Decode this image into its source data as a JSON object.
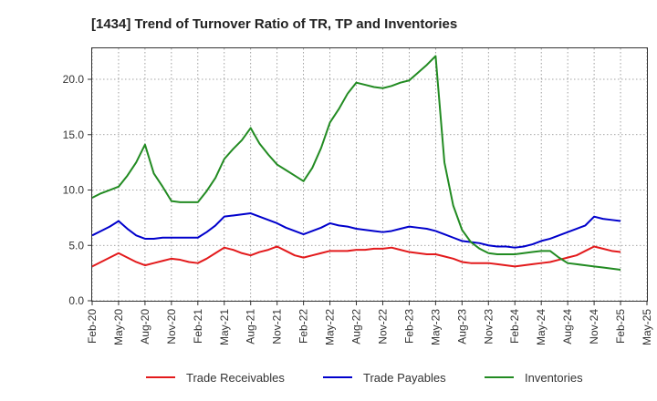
{
  "chart_data": {
    "type": "line",
    "title": "[1434]  Trend of Turnover Ratio of TR, TP and Inventories",
    "xlabel": "",
    "ylabel": "",
    "ylim": [
      0,
      22.8
    ],
    "yticks": [
      "0.0",
      "5.0",
      "10.0",
      "15.0",
      "20.0"
    ],
    "ytick_values": [
      0,
      5,
      10,
      15,
      20
    ],
    "grid": true,
    "legend_position": "bottom",
    "x_ticks": [
      "Feb-20",
      "May-20",
      "Aug-20",
      "Nov-20",
      "Feb-21",
      "May-21",
      "Aug-21",
      "Nov-21",
      "Feb-22",
      "May-22",
      "Aug-22",
      "Nov-22",
      "Feb-23",
      "May-23",
      "Aug-23",
      "Nov-23",
      "Feb-24",
      "May-24",
      "Aug-24",
      "Nov-24",
      "Feb-25",
      "May-25"
    ],
    "x": [
      "Feb-20",
      "Mar-20",
      "Apr-20",
      "May-20",
      "Jun-20",
      "Jul-20",
      "Aug-20",
      "Sep-20",
      "Oct-20",
      "Nov-20",
      "Dec-20",
      "Jan-21",
      "Feb-21",
      "Mar-21",
      "Apr-21",
      "May-21",
      "Jun-21",
      "Jul-21",
      "Aug-21",
      "Sep-21",
      "Oct-21",
      "Nov-21",
      "Dec-21",
      "Jan-22",
      "Feb-22",
      "Mar-22",
      "Apr-22",
      "May-22",
      "Jun-22",
      "Jul-22",
      "Aug-22",
      "Sep-22",
      "Oct-22",
      "Nov-22",
      "Dec-22",
      "Jan-23",
      "Feb-23",
      "Mar-23",
      "Apr-23",
      "May-23",
      "Jun-23",
      "Jul-23",
      "Aug-23",
      "Sep-23",
      "Oct-23",
      "Nov-23",
      "Dec-23",
      "Jan-24",
      "Feb-24",
      "Mar-24",
      "Apr-24",
      "May-24",
      "Jun-24",
      "Jul-24",
      "Aug-24",
      "Sep-24",
      "Oct-24",
      "Nov-24",
      "Dec-24",
      "Jan-25",
      "Feb-25"
    ],
    "series": [
      {
        "name": "Trade Receivables",
        "color": "#e31a1c",
        "values": [
          3.1,
          3.5,
          3.9,
          4.3,
          3.9,
          3.5,
          3.2,
          3.4,
          3.6,
          3.8,
          3.7,
          3.5,
          3.4,
          3.8,
          4.3,
          4.8,
          4.6,
          4.3,
          4.1,
          4.4,
          4.6,
          4.9,
          4.5,
          4.1,
          3.9,
          4.1,
          4.3,
          4.5,
          4.5,
          4.5,
          4.6,
          4.6,
          4.7,
          4.7,
          4.8,
          4.6,
          4.4,
          4.3,
          4.2,
          4.2,
          4.0,
          3.8,
          3.5,
          3.4,
          3.4,
          3.4,
          3.3,
          3.2,
          3.1,
          3.2,
          3.3,
          3.4,
          3.5,
          3.7,
          3.9,
          4.1,
          4.5,
          4.9,
          4.7,
          4.5,
          4.4
        ]
      },
      {
        "name": "Trade Payables",
        "color": "#0000cc",
        "values": [
          5.9,
          6.3,
          6.7,
          7.2,
          6.5,
          5.9,
          5.6,
          5.6,
          5.7,
          5.7,
          5.7,
          5.7,
          5.7,
          6.2,
          6.8,
          7.6,
          7.7,
          7.8,
          7.9,
          7.6,
          7.3,
          7.0,
          6.6,
          6.3,
          6.0,
          6.3,
          6.6,
          7.0,
          6.8,
          6.7,
          6.5,
          6.4,
          6.3,
          6.2,
          6.3,
          6.5,
          6.7,
          6.6,
          6.5,
          6.3,
          6.0,
          5.7,
          5.4,
          5.3,
          5.2,
          5.0,
          4.9,
          4.9,
          4.8,
          4.9,
          5.1,
          5.4,
          5.6,
          5.9,
          6.2,
          6.5,
          6.8,
          7.6,
          7.4,
          7.3,
          7.2
        ]
      },
      {
        "name": "Inventories",
        "color": "#228b22",
        "values": [
          9.3,
          9.7,
          10.0,
          10.3,
          11.3,
          12.5,
          14.1,
          11.5,
          10.3,
          9.0,
          8.9,
          8.9,
          8.9,
          9.9,
          11.1,
          12.8,
          13.7,
          14.5,
          15.6,
          14.2,
          13.2,
          12.3,
          11.8,
          11.3,
          10.8,
          12.0,
          13.8,
          16.1,
          17.3,
          18.7,
          19.7,
          19.5,
          19.3,
          19.2,
          19.4,
          19.7,
          19.9,
          20.6,
          21.3,
          22.1,
          12.5,
          8.6,
          6.4,
          5.3,
          4.7,
          4.3,
          4.2,
          4.2,
          4.2,
          4.3,
          4.4,
          4.5,
          4.5,
          3.9,
          3.4,
          3.3,
          3.2,
          3.1,
          3.0,
          2.9,
          2.8
        ]
      }
    ]
  }
}
